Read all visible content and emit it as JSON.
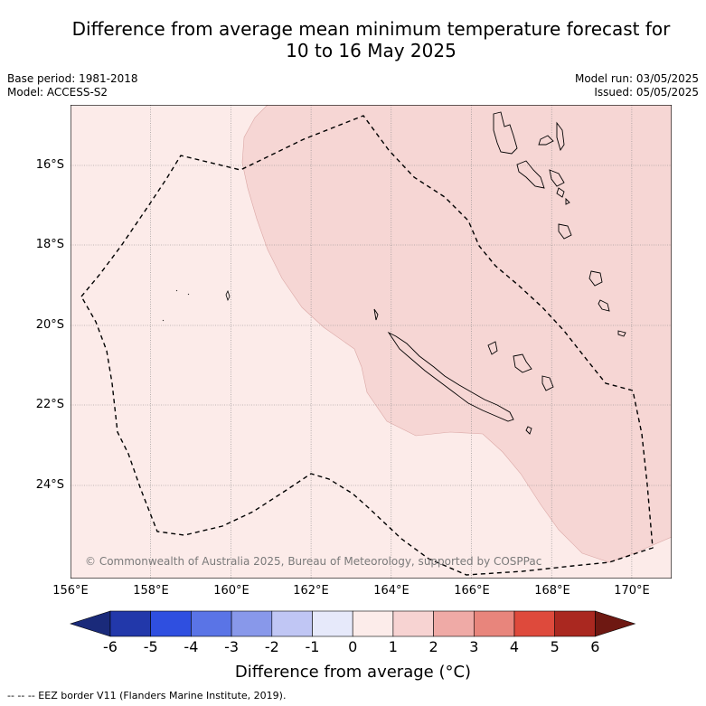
{
  "title_line1": "Difference from average mean minimum temperature forecast for",
  "title_line2": "10 to 16 May 2025",
  "base_period": "Base period: 1981-2018",
  "model": "Model: ACCESS-S2",
  "model_run": "Model run: 03/05/2025",
  "issued": "Issued: 05/05/2025",
  "lat_labels": [
    "16°S",
    "18°S",
    "20°S",
    "22°S",
    "24°S"
  ],
  "lon_labels": [
    "156°E",
    "158°E",
    "160°E",
    "162°E",
    "164°E",
    "166°E",
    "168°E",
    "170°E"
  ],
  "colorbar": {
    "ticks": [
      "-6",
      "-5",
      "-4",
      "-3",
      "-2",
      "-1",
      "0",
      "1",
      "2",
      "3",
      "4",
      "5",
      "6"
    ],
    "colors": [
      "#1a2a7a",
      "#2238aa",
      "#2f4fe0",
      "#5a74e6",
      "#8898ea",
      "#c0c6f4",
      "#e6e9fa",
      "#fcecea",
      "#f7d3d2",
      "#efaaa6",
      "#e8857c",
      "#de4a3c",
      "#aa2820",
      "#6e1812"
    ],
    "title": "Difference from average (°C)"
  },
  "legend_note": "-- -- -- EEZ border V11 (Flanders Marine Institute, 2019).",
  "copyright": "© Commonwealth of Australia 2025, Bureau of Meteorology, supported by COSPPac",
  "map_colors": {
    "bg_anomaly_0_1": "#fcebe9",
    "anomaly_1_2": "#f6d6d4"
  }
}
